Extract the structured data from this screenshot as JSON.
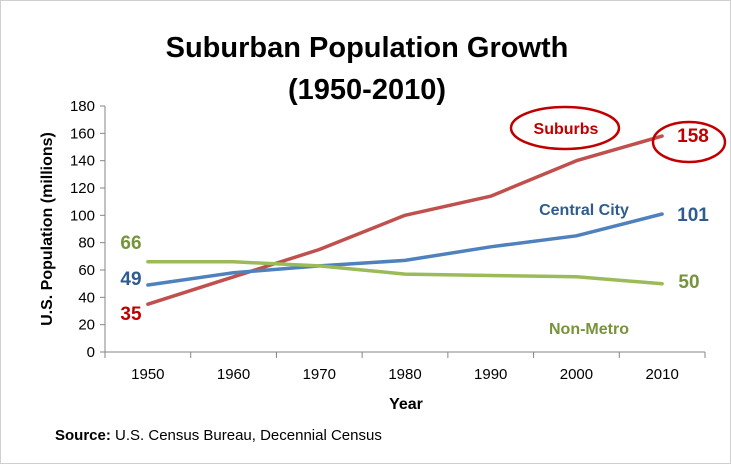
{
  "chart_data": {
    "type": "line",
    "title_line1": "Suburban Population Growth",
    "title_line2": "(1950-2010)",
    "xlabel": "Year",
    "ylabel": "U.S. Population (millions)",
    "ylim": [
      0,
      180
    ],
    "yticks": [
      "0",
      "20",
      "40",
      "60",
      "80",
      "100",
      "120",
      "140",
      "160",
      "180"
    ],
    "categories": [
      "1950",
      "1960",
      "1970",
      "1980",
      "1990",
      "2000",
      "2010"
    ],
    "series": [
      {
        "name": "Suburbs",
        "color": "#c0504d",
        "label_color": "#c00000",
        "values": [
          35,
          55,
          75,
          100,
          114,
          140,
          158
        ],
        "start_label": "35",
        "end_label": "158"
      },
      {
        "name": "Central City",
        "color": "#4f81bd",
        "label_color": "#2f5c8f",
        "values": [
          49,
          58,
          63,
          67,
          77,
          85,
          101
        ],
        "start_label": "49",
        "end_label": "101"
      },
      {
        "name": "Non-Metro",
        "color": "#9bbb59",
        "label_color": "#77933c",
        "values": [
          66,
          66,
          63,
          57,
          56,
          55,
          50
        ],
        "start_label": "66",
        "end_label": "50"
      }
    ]
  },
  "source": {
    "prefix": "Source:",
    "text": " U.S. Census Bureau, Decennial Census"
  }
}
